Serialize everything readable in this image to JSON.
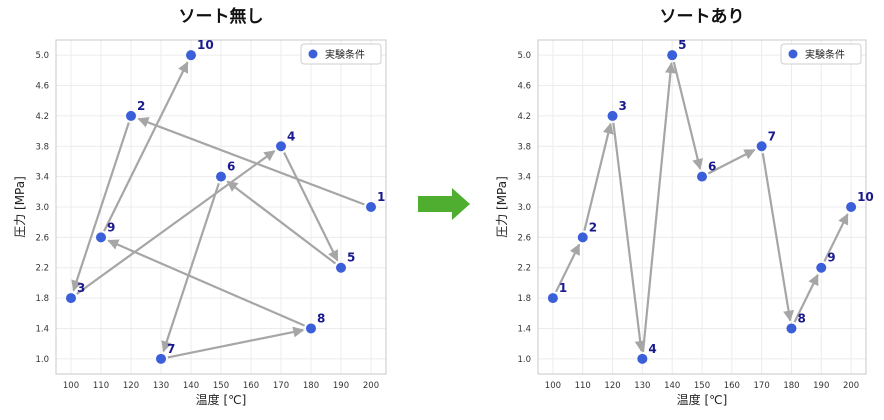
{
  "chart_data": [
    {
      "type": "scatter",
      "title": "ソート無し",
      "xlabel": "温度 [℃]",
      "ylabel": "圧力 [MPa]",
      "xlim": [
        95,
        205
      ],
      "ylim": [
        0.8,
        5.2
      ],
      "xticks": [
        "100",
        "110",
        "120",
        "130",
        "140",
        "150",
        "160",
        "170",
        "180",
        "190",
        "200"
      ],
      "yticks": [
        "1.0",
        "1.4",
        "1.8",
        "2.2",
        "2.6",
        "3.0",
        "3.4",
        "3.8",
        "4.2",
        "4.6",
        "5.0"
      ],
      "grid": true,
      "legend": "top-right",
      "series": [
        {
          "name": "実験条件",
          "color": "#3b5fd9"
        }
      ],
      "points": [
        {
          "label": "1",
          "x": 200,
          "y": 3.0
        },
        {
          "label": "2",
          "x": 120,
          "y": 4.2
        },
        {
          "label": "3",
          "x": 100,
          "y": 1.8
        },
        {
          "label": "4",
          "x": 170,
          "y": 3.8
        },
        {
          "label": "5",
          "x": 190,
          "y": 2.2
        },
        {
          "label": "6",
          "x": 150,
          "y": 3.4
        },
        {
          "label": "7",
          "x": 130,
          "y": 1.0
        },
        {
          "label": "8",
          "x": 180,
          "y": 1.4
        },
        {
          "label": "9",
          "x": 110,
          "y": 2.6
        },
        {
          "label": "10",
          "x": 140,
          "y": 5.0
        }
      ]
    },
    {
      "type": "scatter",
      "title": "ソートあり",
      "xlabel": "温度 [℃]",
      "ylabel": "圧力 [MPa]",
      "xlim": [
        95,
        205
      ],
      "ylim": [
        0.8,
        5.2
      ],
      "xticks": [
        "100",
        "110",
        "120",
        "130",
        "140",
        "150",
        "160",
        "170",
        "180",
        "190",
        "200"
      ],
      "yticks": [
        "1.0",
        "1.4",
        "1.8",
        "2.2",
        "2.6",
        "3.0",
        "3.4",
        "3.8",
        "4.2",
        "4.6",
        "5.0"
      ],
      "grid": true,
      "legend": "top-right",
      "series": [
        {
          "name": "実験条件",
          "color": "#3b5fd9"
        }
      ],
      "points": [
        {
          "label": "1",
          "x": 100,
          "y": 1.8
        },
        {
          "label": "2",
          "x": 110,
          "y": 2.6
        },
        {
          "label": "3",
          "x": 120,
          "y": 4.2
        },
        {
          "label": "4",
          "x": 130,
          "y": 1.0
        },
        {
          "label": "5",
          "x": 140,
          "y": 5.0
        },
        {
          "label": "6",
          "x": 150,
          "y": 3.4
        },
        {
          "label": "7",
          "x": 170,
          "y": 3.8
        },
        {
          "label": "8",
          "x": 180,
          "y": 1.4
        },
        {
          "label": "9",
          "x": 190,
          "y": 2.2
        },
        {
          "label": "10",
          "x": 200,
          "y": 3.0
        }
      ]
    }
  ],
  "colors": {
    "point": "#3b5fd9",
    "point_label": "#1a1a8c",
    "arrow": "#a6a6a6",
    "grid": "#ececec",
    "frame": "#c8c8c8",
    "transition_arrow": "#4fae2f"
  },
  "icons": {
    "transition": "right-arrow-icon"
  }
}
